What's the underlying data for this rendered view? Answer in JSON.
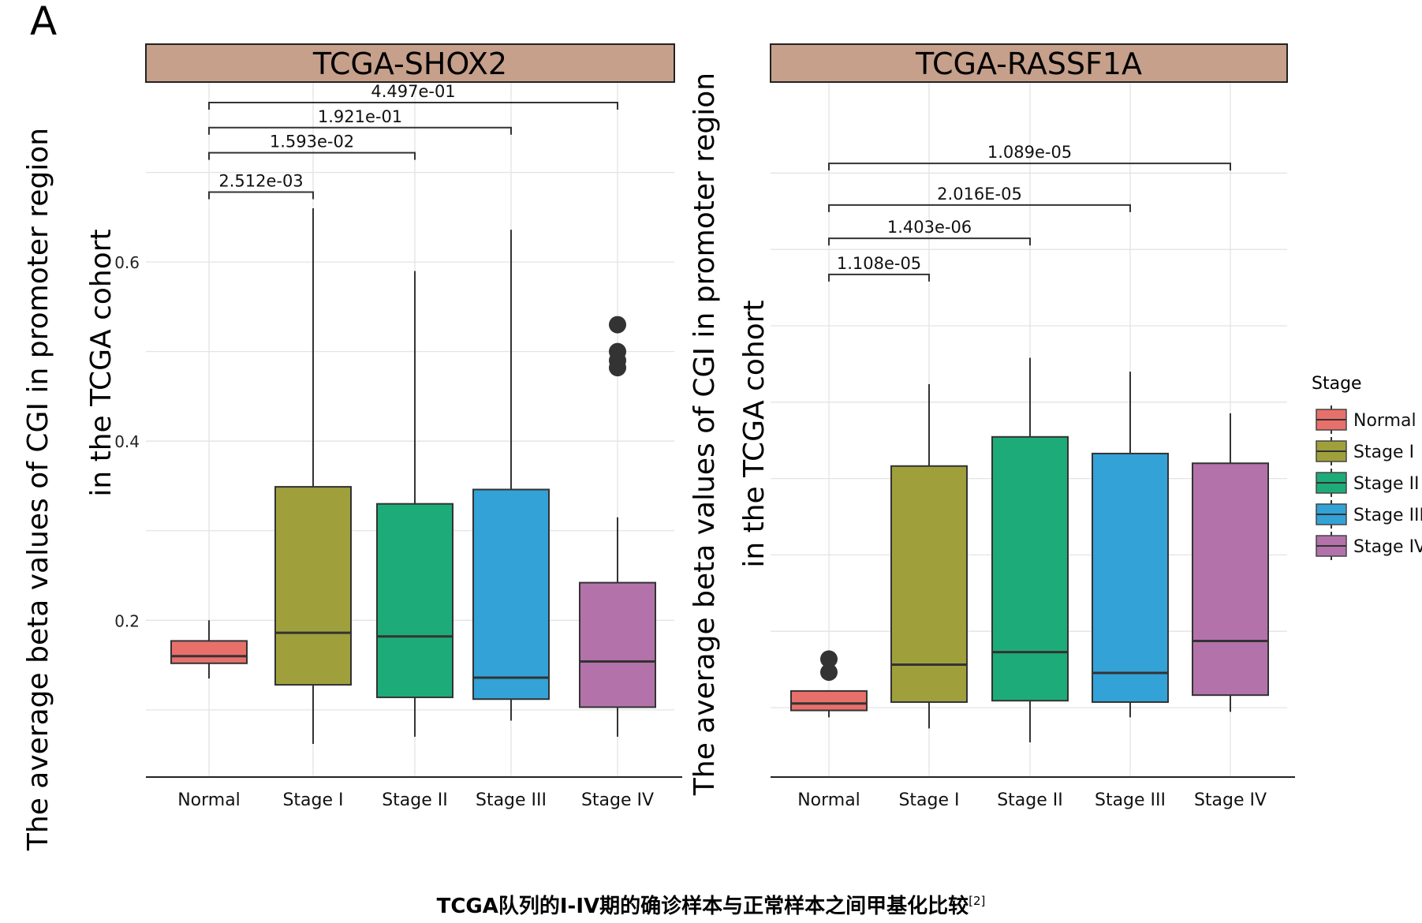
{
  "figure_label": "A",
  "caption": {
    "text": "TCGA队列的I-IV期的确诊样本与正常样本之间甲基化比较",
    "superscript": "[2]"
  },
  "ylabel_line1": "The average beta values of CGI in promoter region",
  "ylabel_line2": "in the TCGA cohort",
  "colors": {
    "Normal": "#E8706B",
    "Stage I": "#9FA03C",
    "Stage II": "#1DAC79",
    "Stage III": "#33A2D7",
    "Stage IV": "#B372A9",
    "strip": "#C6A08B",
    "grid": "#E3E3E3"
  },
  "legend": {
    "title": "Stage",
    "items": [
      "Normal",
      "Stage I",
      "Stage II",
      "Stage III",
      "Stage IV"
    ]
  },
  "chart_data": [
    {
      "type": "boxplot",
      "title": "TCGA-SHOX2",
      "categories": [
        "Normal",
        "Stage I",
        "Stage II",
        "Stage III",
        "Stage IV"
      ],
      "yticks": [
        "0.2",
        "0.4",
        "0.6"
      ],
      "ylim": [
        0.025,
        0.8
      ],
      "boxes": [
        {
          "category": "Normal",
          "whisker_low": 0.135,
          "q1": 0.152,
          "median": 0.16,
          "q3": 0.177,
          "whisker_high": 0.2,
          "outliers": []
        },
        {
          "category": "Stage I",
          "whisker_low": 0.062,
          "q1": 0.128,
          "median": 0.186,
          "q3": 0.349,
          "whisker_high": 0.66,
          "outliers": []
        },
        {
          "category": "Stage II",
          "whisker_low": 0.07,
          "q1": 0.114,
          "median": 0.182,
          "q3": 0.33,
          "whisker_high": 0.59,
          "outliers": []
        },
        {
          "category": "Stage III",
          "whisker_low": 0.088,
          "q1": 0.112,
          "median": 0.136,
          "q3": 0.346,
          "whisker_high": 0.636,
          "outliers": []
        },
        {
          "category": "Stage IV",
          "whisker_low": 0.07,
          "q1": 0.103,
          "median": 0.154,
          "q3": 0.242,
          "whisker_high": 0.315,
          "outliers": [
            0.53,
            0.5,
            0.49,
            0.482
          ]
        }
      ],
      "comparisons": [
        {
          "from": "Normal",
          "to": "Stage I",
          "label": "2.512e-03",
          "y": 0.678
        },
        {
          "from": "Normal",
          "to": "Stage II",
          "label": "1.593e-02",
          "y": 0.722
        },
        {
          "from": "Normal",
          "to": "Stage III",
          "label": "1.921e-01",
          "y": 0.75
        },
        {
          "from": "Normal",
          "to": "Stage IV",
          "label": "4.497e-01",
          "y": 0.778
        }
      ]
    },
    {
      "type": "boxplot",
      "title": "TCGA-RASSF1A",
      "categories": [
        "Normal",
        "Stage I",
        "Stage II",
        "Stage III",
        "Stage IV"
      ],
      "yticks": [],
      "ylim": [
        0,
        1
      ],
      "boxes": [
        {
          "category": "Normal",
          "whisker_low": 0.086,
          "q1": 0.096,
          "median": 0.106,
          "q3": 0.124,
          "whisker_high": 0.124,
          "outliers": [
            0.17,
            0.151
          ]
        },
        {
          "category": "Stage I",
          "whisker_low": 0.07,
          "q1": 0.108,
          "median": 0.162,
          "q3": 0.448,
          "whisker_high": 0.566,
          "outliers": []
        },
        {
          "category": "Stage II",
          "whisker_low": 0.05,
          "q1": 0.11,
          "median": 0.18,
          "q3": 0.49,
          "whisker_high": 0.604,
          "outliers": []
        },
        {
          "category": "Stage III",
          "whisker_low": 0.086,
          "q1": 0.108,
          "median": 0.15,
          "q3": 0.466,
          "whisker_high": 0.584,
          "outliers": []
        },
        {
          "category": "Stage IV",
          "whisker_low": 0.094,
          "q1": 0.118,
          "median": 0.196,
          "q3": 0.452,
          "whisker_high": 0.524,
          "outliers": []
        }
      ],
      "comparisons": [
        {
          "from": "Normal",
          "to": "Stage I",
          "label": "1.108e-05",
          "y": 0.724
        },
        {
          "from": "Normal",
          "to": "Stage II",
          "label": "1.403e-06",
          "y": 0.776
        },
        {
          "from": "Normal",
          "to": "Stage III",
          "label": "2.016E-05",
          "y": 0.824
        },
        {
          "from": "Normal",
          "to": "Stage IV",
          "label": "1.089e-05",
          "y": 0.884
        }
      ]
    }
  ]
}
